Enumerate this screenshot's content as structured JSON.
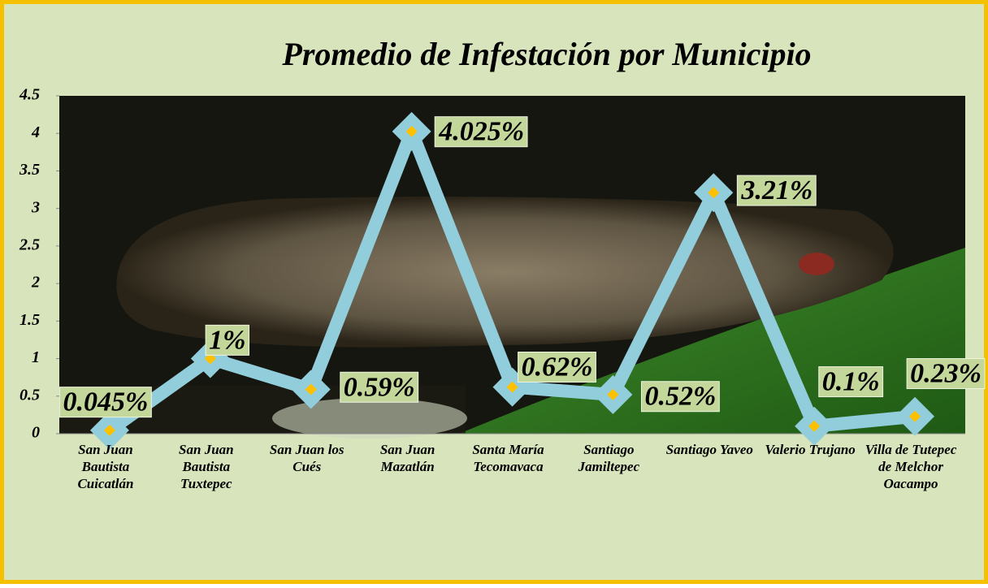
{
  "chart_data": {
    "type": "line",
    "title": "Promedio de Infestación por Municipio",
    "categories": [
      "San Juan Bautista Cuicatlán",
      "San Juan Bautista Tuxtepec",
      "San Juan los Cués",
      "San Juan Mazatlán",
      "Santa María Tecomavaca",
      "Santiago Jamiltepec",
      "Santiago Yaveo",
      "Valerio Trujano",
      "Villa de Tutepec de Melchor Oacampo"
    ],
    "series": [
      {
        "color": "#92cddc",
        "marker_color": "#ffc000",
        "values": [
          0.045,
          1,
          0.59,
          4.025,
          0.62,
          0.52,
          3.21,
          0.1,
          0.23
        ],
        "value_labels": [
          "0.045%",
          "1%",
          "0.59%",
          "4.025%",
          "0.62%",
          "0.52%",
          "3.21%",
          "0.1%",
          "0.23%"
        ]
      }
    ],
    "ylim": [
      0,
      4.5
    ],
    "yticks": [
      0,
      0.5,
      1,
      1.5,
      2,
      2.5,
      3,
      3.5,
      4,
      4.5
    ],
    "grid": false
  }
}
